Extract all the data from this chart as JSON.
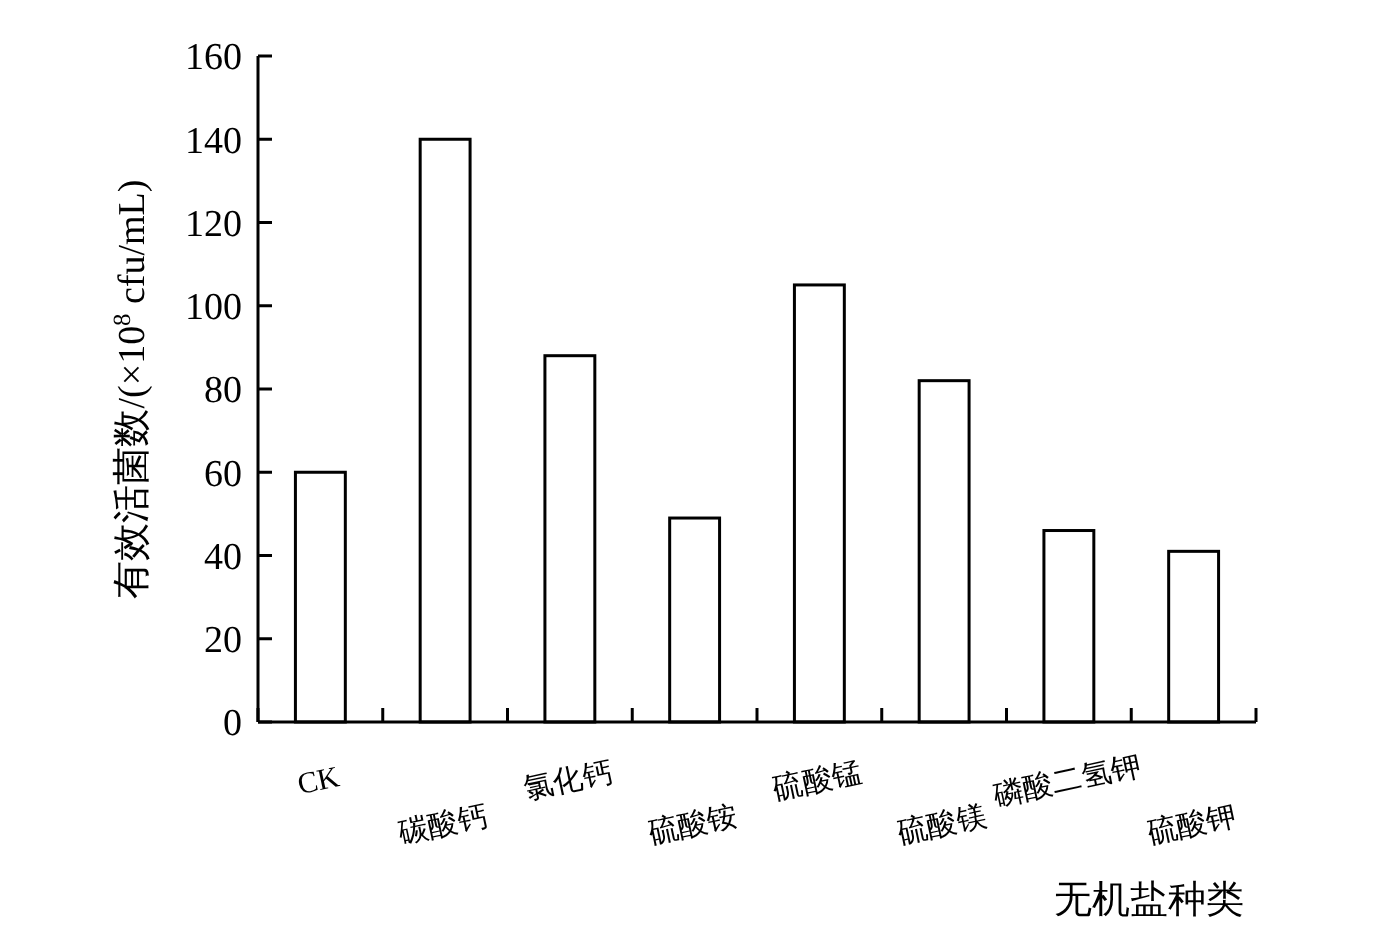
{
  "chart_data": {
    "type": "bar",
    "categories": [
      "CK",
      "碳酸钙",
      "氯化钙",
      "硫酸铵",
      "硫酸锰",
      "硫酸镁",
      "磷酸二氢钾",
      "硫酸钾"
    ],
    "values": [
      60,
      140,
      88,
      49,
      105,
      82,
      46,
      41
    ],
    "color": "#ffffff",
    "ylim": [
      0,
      160
    ],
    "yticks": [
      0,
      20,
      40,
      60,
      80,
      100,
      120,
      140,
      160
    ],
    "grid": false,
    "xlabel": "无机盐种类",
    "ylabel": "有效活菌数/(×10$^{8}$ cfu/mL)"
  }
}
